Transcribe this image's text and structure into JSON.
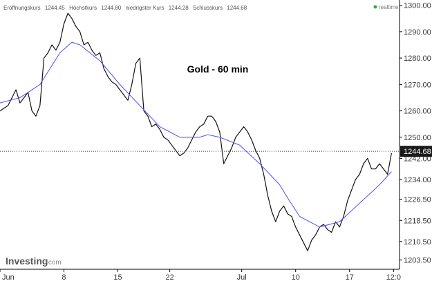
{
  "header": {
    "open_label": "Eröffnungskurs",
    "open_value": "1244.45",
    "high_label": "Höchstkurs",
    "high_value": "1244.80",
    "low_label": "niedrigster Kurs",
    "low_value": "1244.28",
    "close_label": "Schlusskurs",
    "close_value": "1244.68",
    "realtime": "realtime"
  },
  "logo": {
    "main": "Investing",
    "suffix": ".com"
  },
  "colors": {
    "price": "#111111",
    "moving_average": "#5a5af5",
    "current_line": "#333333",
    "current_badge": "#1a1a1a",
    "realtime_dot": "#2eaa4a",
    "axis": "#000000"
  },
  "chart_data": {
    "type": "line",
    "title": "Gold - 60 min",
    "xlabel": "",
    "ylabel": "",
    "x_ticks": [
      "Jun",
      "8",
      "15",
      "22",
      "Jul",
      "10",
      "17",
      "12:0"
    ],
    "y_ticks": [
      "1300.00",
      "1290.00",
      "1280.00",
      "1270.00",
      "1260.00",
      "1250.00",
      "1242.00",
      "1234.00",
      "1226.50",
      "1218.50",
      "1210.50",
      "1203.50"
    ],
    "ylim": [
      1200,
      1302
    ],
    "current_price": "1244.68",
    "x_index_range": [
      0,
      100
    ],
    "series": [
      {
        "x": [
          0,
          2,
          4,
          5,
          7,
          8,
          9,
          10,
          11,
          12,
          13,
          14,
          15,
          16,
          17,
          18,
          19,
          20,
          21,
          22,
          23,
          24,
          25,
          26,
          27,
          28,
          29,
          30,
          31,
          32,
          33,
          34,
          35,
          36,
          37,
          38,
          39,
          40,
          41,
          42,
          43,
          44,
          45,
          46,
          47,
          48,
          49,
          50,
          51,
          52,
          53,
          54,
          55,
          56,
          57,
          58,
          59,
          60,
          61,
          62,
          63,
          64,
          65,
          66,
          67,
          68,
          69,
          70,
          71,
          72,
          73,
          74,
          75,
          76,
          77,
          78,
          79,
          80,
          81,
          82,
          83,
          84,
          85,
          86,
          87,
          88,
          89,
          90,
          91,
          92,
          93,
          94,
          95,
          96,
          97,
          98
        ],
        "values": [
          1260,
          1262,
          1268,
          1263,
          1267,
          1260,
          1258,
          1262,
          1280,
          1282,
          1285,
          1283,
          1286,
          1293,
          1297,
          1295,
          1292,
          1290,
          1285,
          1286,
          1283,
          1281,
          1282,
          1276,
          1273,
          1271,
          1270,
          1268,
          1266,
          1264,
          1270,
          1278,
          1280,
          1260,
          1258,
          1254,
          1255,
          1253,
          1250,
          1249,
          1247,
          1245,
          1243,
          1244,
          1246,
          1249,
          1252,
          1254,
          1255,
          1258,
          1258,
          1256,
          1252,
          1240,
          1243,
          1246,
          1250,
          1252,
          1254,
          1252,
          1249,
          1245,
          1242,
          1236,
          1228,
          1222,
          1218,
          1222,
          1224,
          1221,
          1220,
          1216,
          1213,
          1210,
          1207,
          1211,
          1213,
          1216,
          1217,
          1215,
          1214,
          1218,
          1216,
          1220,
          1226,
          1230,
          1234,
          1236,
          1240,
          1242,
          1238,
          1238,
          1240,
          1238,
          1236,
          1244
        ]
      },
      {
        "x": [
          0,
          5,
          10,
          15,
          18,
          20,
          25,
          30,
          35,
          40,
          45,
          50,
          52,
          55,
          60,
          65,
          70,
          72,
          75,
          80,
          85,
          90,
          95,
          98
        ],
        "values": [
          1263,
          1265,
          1270,
          1282,
          1286,
          1285,
          1279,
          1270,
          1262,
          1254,
          1250,
          1250,
          1251,
          1250,
          1247,
          1240,
          1232,
          1227,
          1220,
          1216,
          1218,
          1225,
          1232,
          1237
        ]
      }
    ]
  }
}
